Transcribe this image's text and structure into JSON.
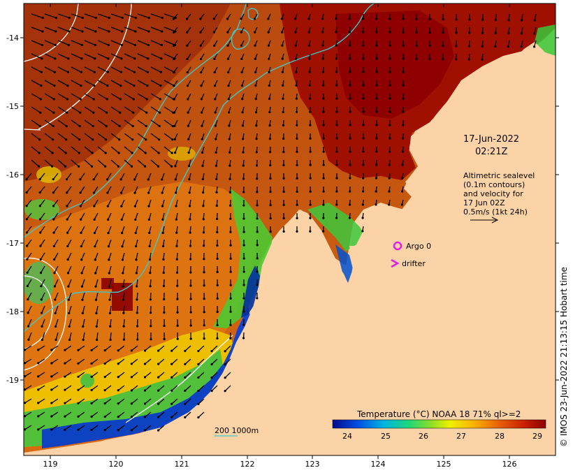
{
  "map": {
    "x_axis_ticks": [
      "119",
      "120",
      "121",
      "122",
      "123",
      "124",
      "125",
      "126"
    ],
    "y_axis_ticks": [
      "-14",
      "-15",
      "-16",
      "-17",
      "-18",
      "-19"
    ],
    "timestamp_line1": "17-Jun-2022",
    "timestamp_line2": "02:21Z",
    "altimetry_note": [
      "Altimetric sealevel",
      "(0.1m contours)",
      "and velocity for",
      "17 Jun 02Z",
      "0.5m/s (1kt 24h)"
    ],
    "argo_label": "Argo 0",
    "drifter_label": "drifter",
    "bathymetry_label": "200  1000m",
    "colorbar_title": "Temperature (°C) NOAA 18 71% ql>=2",
    "colorbar_ticks": [
      "24",
      "25",
      "26",
      "27",
      "28",
      "29"
    ],
    "credit": "© IMOS 23-Jun-2022 21:13:15 Hobart time",
    "colors": {
      "land": "#fcd3a6",
      "argo_marker": "#e020e0",
      "drifter_marker": "#e020e0",
      "contour_200_1000": "#40c8c8",
      "sealevel_contour": "#ffffff"
    }
  }
}
